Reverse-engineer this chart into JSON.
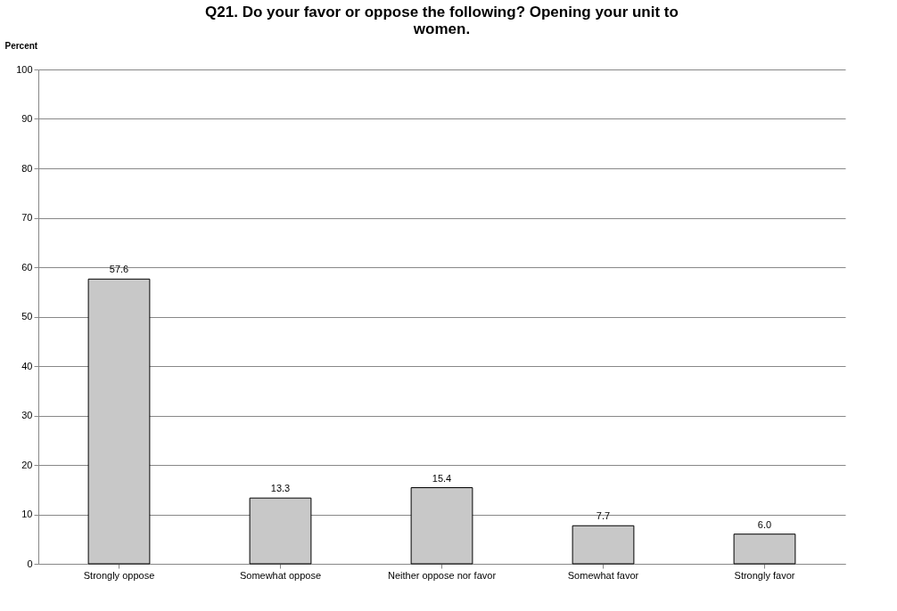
{
  "chart_data": {
    "type": "bar",
    "title": "Q21. Do your favor or oppose the following? Opening your unit to women.",
    "ylabel": "Percent",
    "categories": [
      "Strongly oppose",
      "Somewhat oppose",
      "Neither oppose nor favor",
      "Somewhat favor",
      "Strongly favor"
    ],
    "values": [
      57.6,
      13.3,
      15.4,
      7.7,
      6.0
    ],
    "value_labels": [
      "57.6",
      "13.3",
      "15.4",
      "7.7",
      "6.0"
    ],
    "color": "#c8c8c8",
    "ylim": [
      0,
      100
    ],
    "yticks": [
      0,
      10,
      20,
      30,
      40,
      50,
      60,
      70,
      80,
      90,
      100
    ],
    "grid": "y"
  }
}
